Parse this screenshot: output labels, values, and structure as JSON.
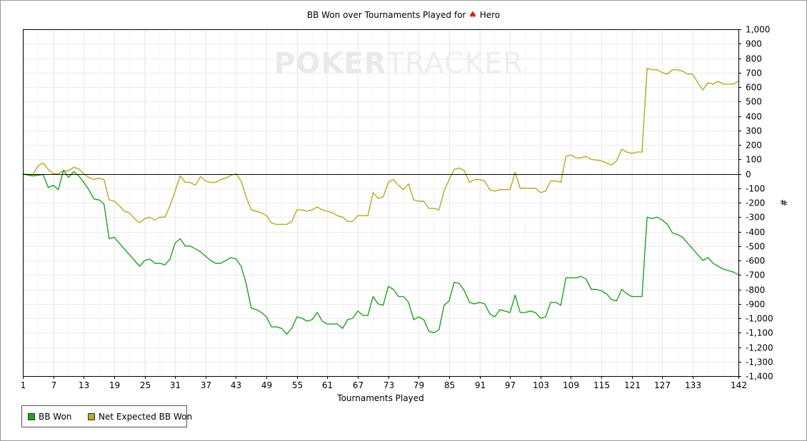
{
  "title": {
    "prefix": "BB Won over Tournaments Played for",
    "player": "Hero",
    "icon": "spade-icon"
  },
  "watermark": {
    "brand_a": "POKER",
    "brand_b": "TRACKER"
  },
  "colors": {
    "bb_won": "#22a022",
    "net_expected": "#b4aa20",
    "grid": "#ebebeb",
    "axis": "#000000",
    "spade": "#d32020"
  },
  "chart_data": {
    "type": "line",
    "xlabel": "Tournaments Played",
    "ylabel": "#",
    "xlim": [
      1,
      142
    ],
    "ylim": [
      -1400,
      1000
    ],
    "x_ticks": [
      1,
      7,
      13,
      19,
      25,
      31,
      37,
      43,
      49,
      55,
      61,
      67,
      73,
      79,
      85,
      91,
      97,
      103,
      109,
      115,
      121,
      127,
      133,
      142
    ],
    "y_ticks": [
      1000,
      900,
      800,
      700,
      600,
      500,
      400,
      300,
      200,
      100,
      0,
      -100,
      -200,
      -300,
      -400,
      -500,
      -600,
      -700,
      -800,
      -900,
      -1000,
      -1100,
      -1200,
      -1300,
      -1400
    ],
    "y_tick_labels": [
      "1,000",
      "900",
      "800",
      "700",
      "600",
      "500",
      "400",
      "300",
      "200",
      "100",
      "0",
      "-100",
      "-200",
      "-300",
      "-400",
      "-500",
      "-600",
      "-700",
      "-800",
      "-900",
      "-1,000",
      "-1,100",
      "-1,200",
      "-1,300",
      "-1,400"
    ],
    "zero_line": true,
    "grid": true,
    "legend_position": "bottom-left",
    "series": [
      {
        "name": "BB Won",
        "color": "#22a022",
        "points": [
          [
            1,
            0
          ],
          [
            2,
            -10
          ],
          [
            3,
            -15
          ],
          [
            4,
            -10
          ],
          [
            5,
            -5
          ],
          [
            6,
            -95
          ],
          [
            7,
            -80
          ],
          [
            8,
            -110
          ],
          [
            9,
            25
          ],
          [
            10,
            -25
          ],
          [
            11,
            15
          ],
          [
            12,
            -15
          ],
          [
            13,
            -60
          ],
          [
            14,
            -110
          ],
          [
            15,
            -175
          ],
          [
            16,
            -180
          ],
          [
            17,
            -210
          ],
          [
            18,
            -450
          ],
          [
            19,
            -440
          ],
          [
            20,
            -480
          ],
          [
            21,
            -520
          ],
          [
            22,
            -560
          ],
          [
            23,
            -600
          ],
          [
            24,
            -640
          ],
          [
            25,
            -600
          ],
          [
            26,
            -590
          ],
          [
            27,
            -620
          ],
          [
            28,
            -620
          ],
          [
            29,
            -630
          ],
          [
            30,
            -590
          ],
          [
            31,
            -480
          ],
          [
            32,
            -450
          ],
          [
            33,
            -500
          ],
          [
            34,
            -500
          ],
          [
            35,
            -520
          ],
          [
            36,
            -540
          ],
          [
            37,
            -570
          ],
          [
            38,
            -600
          ],
          [
            39,
            -620
          ],
          [
            40,
            -620
          ],
          [
            41,
            -600
          ],
          [
            42,
            -580
          ],
          [
            43,
            -590
          ],
          [
            44,
            -640
          ],
          [
            45,
            -760
          ],
          [
            46,
            -930
          ],
          [
            47,
            -940
          ],
          [
            48,
            -960
          ],
          [
            49,
            -990
          ],
          [
            50,
            -1060
          ],
          [
            51,
            -1060
          ],
          [
            52,
            -1070
          ],
          [
            53,
            -1110
          ],
          [
            54,
            -1070
          ],
          [
            55,
            -990
          ],
          [
            56,
            -1000
          ],
          [
            57,
            -1020
          ],
          [
            58,
            -1010
          ],
          [
            59,
            -960
          ],
          [
            60,
            -1020
          ],
          [
            61,
            -1040
          ],
          [
            62,
            -1040
          ],
          [
            63,
            -1040
          ],
          [
            64,
            -1070
          ],
          [
            65,
            -1010
          ],
          [
            66,
            -1000
          ],
          [
            67,
            -950
          ],
          [
            68,
            -980
          ],
          [
            69,
            -980
          ],
          [
            70,
            -850
          ],
          [
            71,
            -900
          ],
          [
            72,
            -910
          ],
          [
            73,
            -780
          ],
          [
            74,
            -800
          ],
          [
            75,
            -850
          ],
          [
            76,
            -850
          ],
          [
            77,
            -890
          ],
          [
            78,
            -1010
          ],
          [
            79,
            -990
          ],
          [
            80,
            -1010
          ],
          [
            81,
            -1090
          ],
          [
            82,
            -1100
          ],
          [
            83,
            -1080
          ],
          [
            84,
            -910
          ],
          [
            85,
            -880
          ],
          [
            86,
            -750
          ],
          [
            87,
            -760
          ],
          [
            88,
            -810
          ],
          [
            89,
            -890
          ],
          [
            90,
            -900
          ],
          [
            91,
            -890
          ],
          [
            92,
            -900
          ],
          [
            93,
            -970
          ],
          [
            94,
            -990
          ],
          [
            95,
            -940
          ],
          [
            96,
            -950
          ],
          [
            97,
            -960
          ],
          [
            98,
            -840
          ],
          [
            99,
            -960
          ],
          [
            100,
            -960
          ],
          [
            101,
            -950
          ],
          [
            102,
            -960
          ],
          [
            103,
            -1000
          ],
          [
            104,
            -990
          ],
          [
            105,
            -890
          ],
          [
            106,
            -890
          ],
          [
            107,
            -910
          ],
          [
            108,
            -720
          ],
          [
            109,
            -720
          ],
          [
            110,
            -720
          ],
          [
            111,
            -710
          ],
          [
            112,
            -730
          ],
          [
            113,
            -800
          ],
          [
            114,
            -800
          ],
          [
            115,
            -810
          ],
          [
            116,
            -830
          ],
          [
            117,
            -870
          ],
          [
            118,
            -880
          ],
          [
            119,
            -800
          ],
          [
            120,
            -830
          ],
          [
            121,
            -850
          ],
          [
            122,
            -850
          ],
          [
            123,
            -850
          ],
          [
            124,
            -300
          ],
          [
            125,
            -310
          ],
          [
            126,
            -300
          ],
          [
            127,
            -320
          ],
          [
            128,
            -350
          ],
          [
            129,
            -410
          ],
          [
            130,
            -420
          ],
          [
            131,
            -440
          ],
          [
            132,
            -480
          ],
          [
            133,
            -520
          ],
          [
            134,
            -560
          ],
          [
            135,
            -600
          ],
          [
            136,
            -580
          ],
          [
            137,
            -620
          ],
          [
            138,
            -640
          ],
          [
            139,
            -660
          ],
          [
            140,
            -670
          ],
          [
            141,
            -680
          ],
          [
            142,
            -700
          ]
        ]
      },
      {
        "name": "Net Expected BB Won",
        "color": "#b4aa20",
        "points": [
          [
            1,
            0
          ],
          [
            2,
            -5
          ],
          [
            3,
            -5
          ],
          [
            4,
            55
          ],
          [
            5,
            75
          ],
          [
            6,
            30
          ],
          [
            7,
            0
          ],
          [
            8,
            0
          ],
          [
            9,
            20
          ],
          [
            10,
            20
          ],
          [
            11,
            45
          ],
          [
            12,
            35
          ],
          [
            13,
            0
          ],
          [
            14,
            -25
          ],
          [
            15,
            -40
          ],
          [
            16,
            -30
          ],
          [
            17,
            -40
          ],
          [
            18,
            -180
          ],
          [
            19,
            -190
          ],
          [
            20,
            -220
          ],
          [
            21,
            -260
          ],
          [
            22,
            -270
          ],
          [
            23,
            -310
          ],
          [
            24,
            -340
          ],
          [
            25,
            -310
          ],
          [
            26,
            -300
          ],
          [
            27,
            -320
          ],
          [
            28,
            -300
          ],
          [
            29,
            -300
          ],
          [
            30,
            -220
          ],
          [
            31,
            -120
          ],
          [
            32,
            -15
          ],
          [
            33,
            -60
          ],
          [
            34,
            -60
          ],
          [
            35,
            -80
          ],
          [
            36,
            -20
          ],
          [
            37,
            -50
          ],
          [
            38,
            -60
          ],
          [
            39,
            -60
          ],
          [
            40,
            -40
          ],
          [
            41,
            -30
          ],
          [
            42,
            -10
          ],
          [
            43,
            0
          ],
          [
            44,
            -50
          ],
          [
            45,
            -160
          ],
          [
            46,
            -250
          ],
          [
            47,
            -260
          ],
          [
            48,
            -270
          ],
          [
            49,
            -290
          ],
          [
            50,
            -340
          ],
          [
            51,
            -350
          ],
          [
            52,
            -350
          ],
          [
            53,
            -350
          ],
          [
            54,
            -330
          ],
          [
            55,
            -250
          ],
          [
            56,
            -250
          ],
          [
            57,
            -260
          ],
          [
            58,
            -250
          ],
          [
            59,
            -230
          ],
          [
            60,
            -250
          ],
          [
            61,
            -260
          ],
          [
            62,
            -270
          ],
          [
            63,
            -290
          ],
          [
            64,
            -300
          ],
          [
            65,
            -330
          ],
          [
            66,
            -330
          ],
          [
            67,
            -290
          ],
          [
            68,
            -290
          ],
          [
            69,
            -290
          ],
          [
            70,
            -130
          ],
          [
            71,
            -170
          ],
          [
            72,
            -160
          ],
          [
            73,
            -60
          ],
          [
            74,
            -40
          ],
          [
            75,
            -80
          ],
          [
            76,
            -110
          ],
          [
            77,
            -70
          ],
          [
            78,
            -180
          ],
          [
            79,
            -190
          ],
          [
            80,
            -190
          ],
          [
            81,
            -240
          ],
          [
            82,
            -240
          ],
          [
            83,
            -250
          ],
          [
            84,
            -120
          ],
          [
            85,
            -40
          ],
          [
            86,
            30
          ],
          [
            87,
            40
          ],
          [
            88,
            20
          ],
          [
            89,
            -60
          ],
          [
            90,
            -40
          ],
          [
            91,
            -40
          ],
          [
            92,
            -50
          ],
          [
            93,
            -110
          ],
          [
            94,
            -120
          ],
          [
            95,
            -110
          ],
          [
            96,
            -110
          ],
          [
            97,
            -110
          ],
          [
            98,
            10
          ],
          [
            99,
            -100
          ],
          [
            100,
            -100
          ],
          [
            101,
            -100
          ],
          [
            102,
            -100
          ],
          [
            103,
            -130
          ],
          [
            104,
            -120
          ],
          [
            105,
            -50
          ],
          [
            106,
            -50
          ],
          [
            107,
            -60
          ],
          [
            108,
            120
          ],
          [
            109,
            130
          ],
          [
            110,
            110
          ],
          [
            111,
            110
          ],
          [
            112,
            120
          ],
          [
            113,
            100
          ],
          [
            114,
            95
          ],
          [
            115,
            90
          ],
          [
            116,
            75
          ],
          [
            117,
            60
          ],
          [
            118,
            90
          ],
          [
            119,
            170
          ],
          [
            120,
            150
          ],
          [
            121,
            140
          ],
          [
            122,
            150
          ],
          [
            123,
            150
          ],
          [
            124,
            730
          ],
          [
            125,
            720
          ],
          [
            126,
            720
          ],
          [
            127,
            700
          ],
          [
            128,
            690
          ],
          [
            129,
            720
          ],
          [
            130,
            720
          ],
          [
            131,
            710
          ],
          [
            132,
            690
          ],
          [
            133,
            690
          ],
          [
            134,
            630
          ],
          [
            135,
            580
          ],
          [
            136,
            630
          ],
          [
            137,
            620
          ],
          [
            138,
            640
          ],
          [
            139,
            620
          ],
          [
            140,
            620
          ],
          [
            141,
            620
          ],
          [
            142,
            640
          ]
        ]
      }
    ]
  }
}
